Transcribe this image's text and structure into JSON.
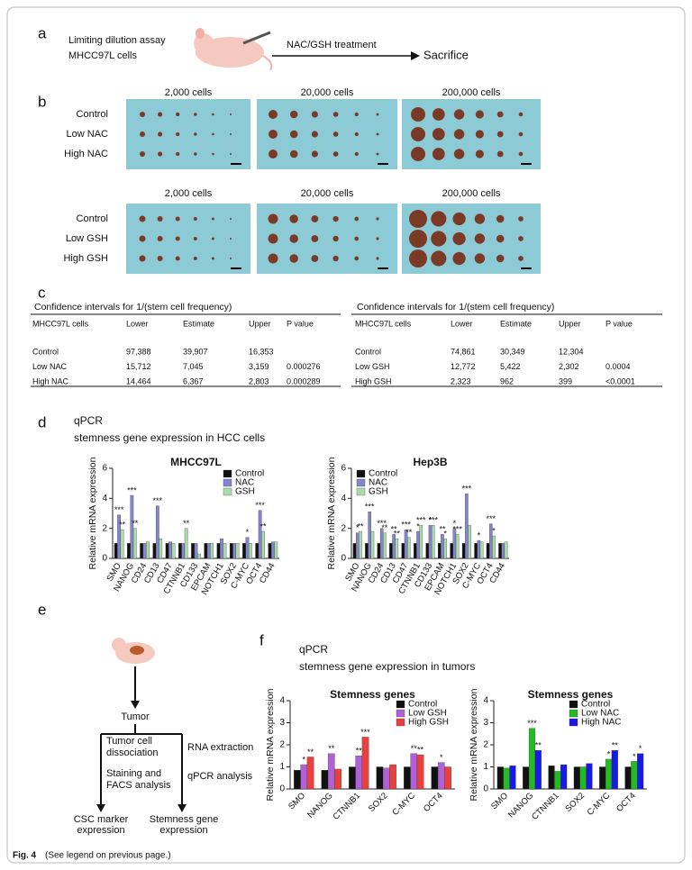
{
  "panel_labels": [
    "a",
    "b",
    "c",
    "d",
    "e",
    "f"
  ],
  "panel_a": {
    "line1": "Limiting dilution assay",
    "line2": "MHCC97L cells",
    "treatment": "NAC/GSH treatment",
    "endpoint": "Sacrifice"
  },
  "panel_b": {
    "groups": [
      {
        "columns": [
          "2,000 cells",
          "20,000 cells",
          "200,000 cells"
        ],
        "rows": [
          "Control",
          "Low NAC",
          "High NAC"
        ]
      },
      {
        "columns": [
          "2,000 cells",
          "20,000 cells",
          "200,000 cells"
        ],
        "rows": [
          "Control",
          "Low GSH",
          "High GSH"
        ]
      }
    ]
  },
  "tables": [
    {
      "title": "Confidence intervals for 1/(stem cell frequency)",
      "columns": [
        "MHCC97L cells",
        "Lower",
        "Estimate",
        "Upper",
        "P value"
      ],
      "rows": [
        [
          "Control",
          "97,388",
          "39,907",
          "16,353",
          null
        ],
        [
          "Low NAC",
          "15,712",
          "7,045",
          "3,159",
          "0.000276"
        ],
        [
          "High NAC",
          "14,464",
          "6,367",
          "2,803",
          "0.000289"
        ]
      ]
    },
    {
      "title": "Confidence intervals for 1/(stem cell frequency)",
      "columns": [
        "MHCC97L cells",
        "Lower",
        "Estimate",
        "Upper",
        "P value"
      ],
      "rows": [
        [
          "Control",
          "74,861",
          "30,349",
          "12,304",
          null
        ],
        [
          "Low GSH",
          "12,772",
          "5,422",
          "2,302",
          "0.0004"
        ],
        [
          "High GSH",
          "2,323",
          "962",
          "399",
          "<0.0001"
        ]
      ]
    }
  ],
  "panel_d": {
    "heading": "qPCR",
    "subheading": "stemness gene expression in HCC cells"
  },
  "panel_e": {
    "tumor": "Tumor",
    "left1": "Tumor cell",
    "left2": "dissociation",
    "left3": "Staining and",
    "left4": "FACS analysis",
    "right1": "RNA extraction",
    "right2": "qPCR analysis",
    "out1a": "CSC marker",
    "out1b": "expression",
    "out2a": "Stemness gene",
    "out2b": "expression"
  },
  "panel_f": {
    "heading": "qPCR",
    "subheading": "stemness gene expression in tumors"
  },
  "caption": {
    "label": "Fig. 4",
    "text": "(See legend on previous page.)"
  },
  "chart_data": [
    {
      "type": "bar",
      "title": "MHCC97L",
      "ylabel": "Relative mRNA expression",
      "categories": [
        "SMO",
        "NANOG",
        "CD24",
        "CD13",
        "CD47",
        "CTNNB1",
        "CD133",
        "EPCAM",
        "NOTCH1",
        "SOX2",
        "C-MYC",
        "OCT4",
        "CD44"
      ],
      "series": [
        {
          "name": "Control",
          "color": "#111111",
          "values": [
            1,
            1,
            1,
            1,
            1,
            1,
            1,
            1,
            1,
            1,
            1,
            1,
            1
          ]
        },
        {
          "name": "NAC",
          "color": "#8585cc",
          "values": [
            2.9,
            4.2,
            1.0,
            3.5,
            1.1,
            1.0,
            1.0,
            1.0,
            1.3,
            1.0,
            1.4,
            3.2,
            1.1
          ],
          "stars": [
            "***",
            "***",
            null,
            "***",
            null,
            null,
            null,
            null,
            null,
            null,
            "*",
            "***",
            null
          ]
        },
        {
          "name": "GSH",
          "color": "#a8dca8",
          "values": [
            1.9,
            2.0,
            1.1,
            1.3,
            1.0,
            2.0,
            0.3,
            1.0,
            1.0,
            1.0,
            1.0,
            1.8,
            1.1
          ],
          "stars": [
            "**",
            "**",
            null,
            null,
            null,
            "**",
            null,
            null,
            null,
            null,
            null,
            "**",
            null
          ]
        }
      ],
      "ylim": [
        0,
        6
      ],
      "yticks": [
        0,
        2,
        4,
        6
      ]
    },
    {
      "type": "bar",
      "title": "Hep3B",
      "ylabel": "Relative mRNA expression",
      "categories": [
        "SMO",
        "NANOG",
        "CD24",
        "CD13",
        "CD47",
        "CTNNB1",
        "CD133",
        "EPCAM",
        "NOTCH1",
        "SOX2",
        "C-MYC",
        "OCT4",
        "CD44"
      ],
      "series": [
        {
          "name": "Control",
          "color": "#111111",
          "values": [
            1,
            1,
            1,
            1,
            1,
            1,
            1,
            1,
            1,
            1,
            1,
            1,
            1
          ]
        },
        {
          "name": "NAC",
          "color": "#8585cc",
          "values": [
            1.7,
            3.1,
            2.0,
            1.6,
            1.9,
            1.8,
            2.2,
            1.6,
            2.0,
            4.3,
            1.2,
            2.3,
            1.0
          ],
          "stars": [
            "*",
            "***",
            "***",
            "**",
            "***",
            "*",
            "*",
            "**",
            "*",
            "***",
            "*",
            "***",
            null
          ]
        },
        {
          "name": "GSH",
          "color": "#a8dca8",
          "values": [
            1.8,
            1.8,
            1.7,
            1.3,
            1.4,
            2.2,
            2.2,
            1.3,
            1.6,
            2.2,
            1.1,
            1.5,
            1.1
          ],
          "stars": [
            "**",
            null,
            "**",
            "**",
            "**",
            "***",
            "***",
            "*",
            "***",
            null,
            null,
            "*",
            null
          ]
        }
      ],
      "ylim": [
        0,
        6
      ],
      "yticks": [
        0,
        2,
        4,
        6
      ]
    },
    {
      "type": "bar",
      "title": "Stemness genes",
      "ylabel": "Relative mRNA expression",
      "categories": [
        "SMO",
        "NANOG",
        "CTNNB1",
        "SOX2",
        "C-MYC",
        "OCT4"
      ],
      "series": [
        {
          "name": "Control",
          "color": "#111111",
          "values": [
            0.85,
            0.85,
            1.0,
            1.0,
            1.0,
            1.0
          ]
        },
        {
          "name": "Low GSH",
          "color": "#b061d8",
          "values": [
            1.1,
            1.6,
            1.5,
            0.95,
            1.6,
            1.2
          ],
          "stars": [
            "*",
            "**",
            "**",
            null,
            "**",
            "*"
          ]
        },
        {
          "name": "High GSH",
          "color": "#e8403c",
          "values": [
            1.45,
            0.9,
            2.35,
            1.1,
            1.55,
            1.0
          ],
          "stars": [
            "**",
            null,
            "***",
            null,
            "**",
            null
          ]
        }
      ],
      "ylim": [
        0,
        4
      ],
      "yticks": [
        0,
        1,
        2,
        3,
        4
      ]
    },
    {
      "type": "bar",
      "title": "Stemness genes",
      "ylabel": "Relative mRNA expression",
      "categories": [
        "SMO",
        "NANOG",
        "CTNNB1",
        "SOX2",
        "C-MYC",
        "OCT4"
      ],
      "series": [
        {
          "name": "Control",
          "color": "#111111",
          "values": [
            1.0,
            1.0,
            1.05,
            1.0,
            1.0,
            1.0
          ]
        },
        {
          "name": "Low NAC",
          "color": "#22bb22",
          "values": [
            0.95,
            2.75,
            0.8,
            1.0,
            1.35,
            1.25
          ],
          "stars": [
            null,
            "***",
            null,
            null,
            "*",
            "*"
          ]
        },
        {
          "name": "High NAC",
          "color": "#1a1ae6",
          "values": [
            1.05,
            1.75,
            1.1,
            1.15,
            1.75,
            1.6
          ],
          "stars": [
            null,
            "**",
            null,
            null,
            "**",
            "*"
          ]
        }
      ],
      "ylim": [
        0,
        4
      ],
      "yticks": [
        0,
        1,
        2,
        3,
        4
      ]
    }
  ]
}
